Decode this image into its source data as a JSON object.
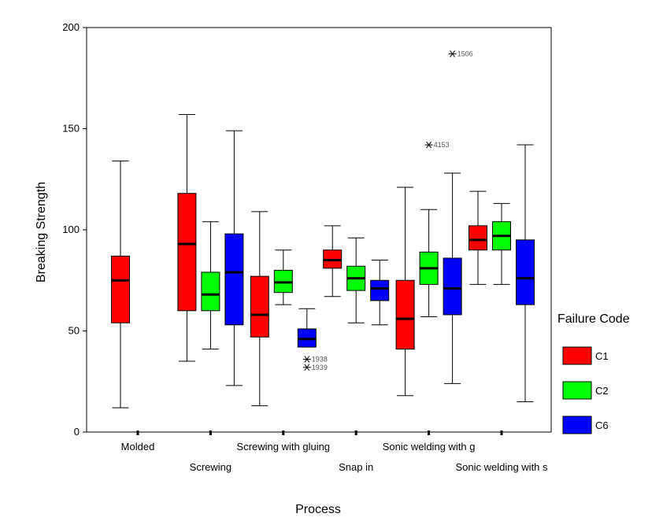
{
  "chart_data": {
    "type": "boxplot",
    "xlabel": "Process",
    "ylabel": "Breaking Strength",
    "ylim": [
      0,
      200
    ],
    "yticks": [
      0,
      50,
      100,
      150,
      200
    ],
    "grid": false,
    "legend_title": "Failure Code",
    "legend_position": "right",
    "categories": [
      "Molded",
      "Screwing",
      "Screwing with gluing",
      "Snap in",
      "Sonic welding with g",
      "Sonic welding with s"
    ],
    "series": [
      {
        "name": "C1",
        "color": "#ff0000",
        "boxes": [
          {
            "category": "Molded",
            "whisker_low": 12,
            "q1": 54,
            "median": 75,
            "q3": 87,
            "whisker_high": 134
          },
          {
            "category": "Screwing",
            "whisker_low": 35,
            "q1": 60,
            "median": 93,
            "q3": 118,
            "whisker_high": 157
          },
          {
            "category": "Screwing with gluing",
            "whisker_low": 13,
            "q1": 47,
            "median": 58,
            "q3": 77,
            "whisker_high": 109
          },
          {
            "category": "Snap in",
            "whisker_low": 67,
            "q1": 81,
            "median": 85,
            "q3": 90,
            "whisker_high": 102
          },
          {
            "category": "Sonic welding with g",
            "whisker_low": 18,
            "q1": 41,
            "median": 56,
            "q3": 75,
            "whisker_high": 121
          },
          {
            "category": "Sonic welding with s",
            "whisker_low": 73,
            "q1": 90,
            "median": 95,
            "q3": 102,
            "whisker_high": 119
          }
        ]
      },
      {
        "name": "C2",
        "color": "#00ff00",
        "boxes": [
          {
            "category": "Screwing",
            "whisker_low": 41,
            "q1": 60,
            "median": 68,
            "q3": 79,
            "whisker_high": 104
          },
          {
            "category": "Screwing with gluing",
            "whisker_low": 63,
            "q1": 69,
            "median": 74,
            "q3": 80,
            "whisker_high": 90
          },
          {
            "category": "Snap in",
            "whisker_low": 54,
            "q1": 70,
            "median": 76,
            "q3": 82,
            "whisker_high": 96
          },
          {
            "category": "Sonic welding with g",
            "whisker_low": 57,
            "q1": 73,
            "median": 81,
            "q3": 89,
            "whisker_high": 110
          },
          {
            "category": "Sonic welding with s",
            "whisker_low": 73,
            "q1": 90,
            "median": 97,
            "q3": 104,
            "whisker_high": 113
          }
        ]
      },
      {
        "name": "C6",
        "color": "#0000ff",
        "boxes": [
          {
            "category": "Screwing",
            "whisker_low": 23,
            "q1": 53,
            "median": 79,
            "q3": 98,
            "whisker_high": 149
          },
          {
            "category": "Screwing with gluing",
            "whisker_low": 42,
            "q1": 42,
            "median": 46,
            "q3": 51,
            "whisker_high": 61
          },
          {
            "category": "Snap in",
            "whisker_low": 53,
            "q1": 65,
            "median": 71,
            "q3": 75,
            "whisker_high": 85
          },
          {
            "category": "Sonic welding with g",
            "whisker_low": 24,
            "q1": 58,
            "median": 71,
            "q3": 86,
            "whisker_high": 128
          },
          {
            "category": "Sonic welding with s",
            "whisker_low": 15,
            "q1": 63,
            "median": 76,
            "q3": 95,
            "whisker_high": 142
          }
        ]
      }
    ],
    "outliers": [
      {
        "series": "C2",
        "category": "Sonic welding with g",
        "value": 142,
        "label": "4153"
      },
      {
        "series": "C6",
        "category": "Sonic welding with g",
        "value": 187,
        "label": "1506"
      },
      {
        "series": "C6",
        "category": "Screwing with gluing",
        "value": 36,
        "label": "1938"
      },
      {
        "series": "C6",
        "category": "Screwing with gluing",
        "value": 32,
        "label": "1939"
      }
    ]
  }
}
